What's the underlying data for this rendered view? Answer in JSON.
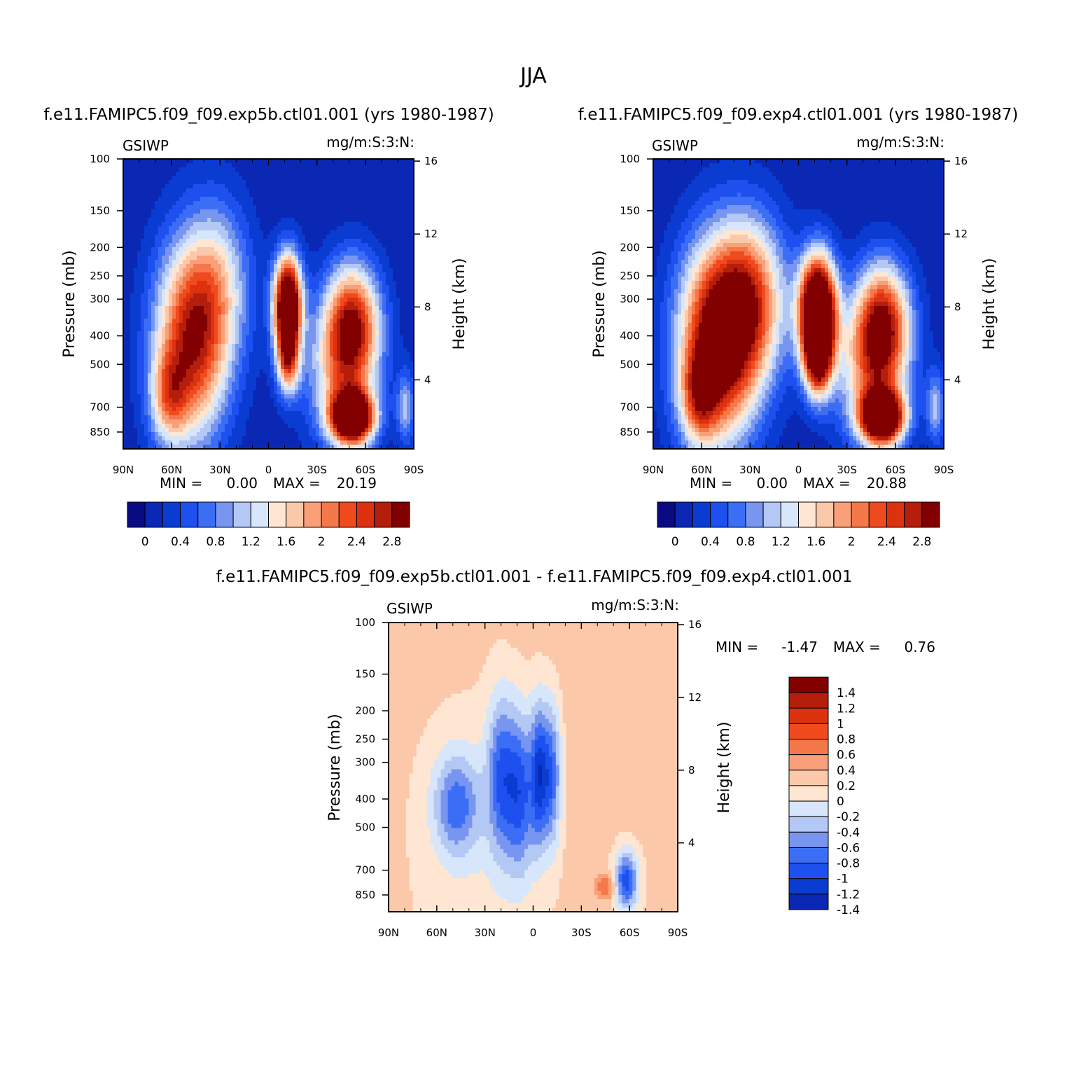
{
  "figure_title": "JJA",
  "chart_data": [
    {
      "type": "heatmap",
      "title": "f.e11.FAMIPC5.f09_f09.exp5b.ctl01.001 (yrs 1980-1987)",
      "left_label": "GSIWP",
      "right_label": "mg/m:S:3:N:",
      "xlabel": "",
      "ylabel": "Pressure (mb)",
      "y2label": "Height (km)",
      "x_ticks": [
        "90N",
        "60N",
        "30N",
        "0",
        "30S",
        "60S",
        "90S"
      ],
      "y_ticks": [
        100,
        150,
        200,
        250,
        300,
        400,
        500,
        700,
        850
      ],
      "y_ticks_text": [
        "100",
        "150",
        "200",
        "250",
        "300",
        "400",
        "500",
        "700",
        "850"
      ],
      "y2_ticks": [
        4,
        8,
        12,
        16
      ],
      "y2_ticks_text": [
        "4",
        "8",
        "12",
        "16"
      ],
      "min_text": "MIN =",
      "min_value": "0.00",
      "max_text": "MAX =",
      "max_value": "20.19",
      "colorbar_labels": [
        "0",
        "0.4",
        "0.8",
        "1.2",
        "1.6",
        "2",
        "2.4",
        "2.8"
      ],
      "features": [
        {
          "lat": -12,
          "p": 310,
          "lw": 6,
          "ls": 0.26,
          "a": 4.0
        },
        {
          "lat": -12,
          "p": 480,
          "lw": 5,
          "ls": 0.2,
          "a": 2.0
        },
        {
          "lat": -52,
          "p": 360,
          "lw": 12,
          "ls": 0.33,
          "a": 2.4
        },
        {
          "lat": -45,
          "p": 550,
          "lw": 15,
          "ls": 0.38,
          "a": 1.4
        },
        {
          "lat": 48,
          "p": 420,
          "lw": 16,
          "ls": 0.55,
          "a": 2.6
        },
        {
          "lat": 62,
          "p": 650,
          "lw": 8,
          "ls": 0.25,
          "a": 1.2
        },
        {
          "lat": 30,
          "p": 260,
          "lw": 14,
          "ls": 0.45,
          "a": 1.0
        },
        {
          "lat": -52,
          "p": 760,
          "lw": 9,
          "ls": 0.14,
          "a": 4.0
        },
        {
          "lat": -85,
          "p": 700,
          "lw": 4,
          "ls": 0.2,
          "a": 1.0
        }
      ]
    },
    {
      "type": "heatmap",
      "title": "f.e11.FAMIPC5.f09_f09.exp4.ctl01.001 (yrs 1980-1987)",
      "left_label": "GSIWP",
      "right_label": "mg/m:S:3:N:",
      "xlabel": "",
      "ylabel": "Pressure (mb)",
      "y2label": "Height (km)",
      "x_ticks": [
        "90N",
        "60N",
        "30N",
        "0",
        "30S",
        "60S",
        "90S"
      ],
      "y_ticks": [
        100,
        150,
        200,
        250,
        300,
        400,
        500,
        700,
        850
      ],
      "y_ticks_text": [
        "100",
        "150",
        "200",
        "250",
        "300",
        "400",
        "500",
        "700",
        "850"
      ],
      "y2_ticks": [
        4,
        8,
        12,
        16
      ],
      "y2_ticks_text": [
        "4",
        "8",
        "12",
        "16"
      ],
      "min_text": "MIN =",
      "min_value": "0.00",
      "max_text": "MAX =",
      "max_value": "20.88",
      "colorbar_labels": [
        "0",
        "0.4",
        "0.8",
        "1.2",
        "1.6",
        "2",
        "2.4",
        "2.8"
      ],
      "features": [
        {
          "lat": -12,
          "p": 330,
          "lw": 8,
          "ls": 0.3,
          "a": 4.5
        },
        {
          "lat": -12,
          "p": 480,
          "lw": 6,
          "ls": 0.22,
          "a": 2.2
        },
        {
          "lat": -52,
          "p": 360,
          "lw": 12,
          "ls": 0.33,
          "a": 2.5
        },
        {
          "lat": -45,
          "p": 550,
          "lw": 15,
          "ls": 0.38,
          "a": 1.5
        },
        {
          "lat": 50,
          "p": 420,
          "lw": 17,
          "ls": 0.55,
          "a": 3.2
        },
        {
          "lat": 62,
          "p": 650,
          "lw": 8,
          "ls": 0.25,
          "a": 1.3
        },
        {
          "lat": 28,
          "p": 300,
          "lw": 15,
          "ls": 0.45,
          "a": 1.8
        },
        {
          "lat": -52,
          "p": 760,
          "lw": 9,
          "ls": 0.14,
          "a": 4.0
        },
        {
          "lat": -85,
          "p": 700,
          "lw": 4,
          "ls": 0.2,
          "a": 1.0
        }
      ]
    },
    {
      "type": "heatmap",
      "title": "f.e11.FAMIPC5.f09_f09.exp5b.ctl01.001 - f.e11.FAMIPC5.f09_f09.exp4.ctl01.001",
      "left_label": "GSIWP",
      "right_label": "mg/m:S:3:N:",
      "xlabel": "",
      "ylabel": "Pressure (mb)",
      "y2label": "Height (km)",
      "x_ticks": [
        "90N",
        "60N",
        "30N",
        "0",
        "30S",
        "60S",
        "90S"
      ],
      "y_ticks": [
        100,
        150,
        200,
        250,
        300,
        400,
        500,
        700,
        850
      ],
      "y_ticks_text": [
        "100",
        "150",
        "200",
        "250",
        "300",
        "400",
        "500",
        "700",
        "850"
      ],
      "y2_ticks": [
        4,
        8,
        12,
        16
      ],
      "y2_ticks_text": [
        "4",
        "8",
        "12",
        "16"
      ],
      "min_text": "MIN =",
      "min_value": "-1.47",
      "max_text": "MAX =",
      "max_value": "0.76",
      "colorbar_labels": [
        "1.4",
        "1.2",
        "1",
        "0.8",
        "0.6",
        "0.4",
        "0.2",
        "0",
        "-0.2",
        "-0.4",
        "-0.6",
        "-0.8",
        "-1",
        "-1.2",
        "-1.4"
      ],
      "features": [
        {
          "lat": 48,
          "p": 420,
          "lw": 10,
          "ls": 0.28,
          "a": -0.85
        },
        {
          "lat": 20,
          "p": 330,
          "lw": 6,
          "ls": 0.45,
          "a": -0.9
        },
        {
          "lat": 8,
          "p": 380,
          "lw": 6,
          "ls": 0.45,
          "a": -1.0
        },
        {
          "lat": -4,
          "p": 330,
          "lw": 4,
          "ls": 0.4,
          "a": -1.2
        },
        {
          "lat": -12,
          "p": 330,
          "lw": 4,
          "ls": 0.4,
          "a": -0.9
        },
        {
          "lat": 30,
          "p": 450,
          "lw": 25,
          "ls": 0.7,
          "a": -0.25
        },
        {
          "lat": -58,
          "p": 760,
          "lw": 5,
          "ls": 0.16,
          "a": -1.2
        },
        {
          "lat": -45,
          "p": 800,
          "lw": 4,
          "ls": 0.07,
          "a": 0.6
        },
        {
          "lat": 0,
          "p": 250,
          "lw": 60,
          "ls": 1.2,
          "a": 0.12
        }
      ]
    }
  ]
}
